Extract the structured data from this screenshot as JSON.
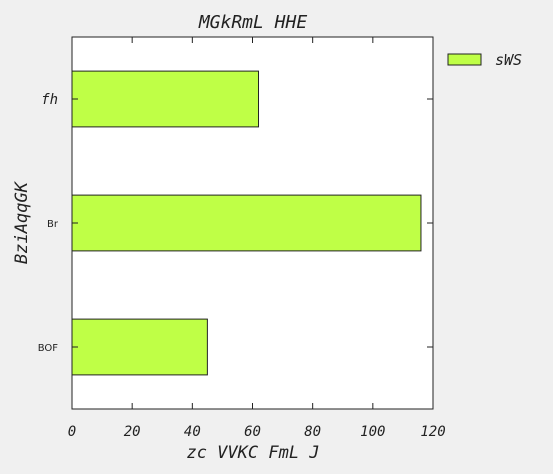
{
  "chart_data": {
    "type": "bar",
    "orientation": "horizontal",
    "title": "MGkRmL HHE",
    "xlabel": "zc VVKC FmL J",
    "ylabel": "BziAqqGK",
    "categories": [
      "BOF",
      "Br",
      "fh"
    ],
    "series": [
      {
        "name": "sWS",
        "values": [
          45,
          116,
          62
        ],
        "color": "#bfff46"
      }
    ],
    "xlim": [
      0,
      120
    ],
    "xticks": [
      0,
      20,
      40,
      60,
      80,
      100,
      120
    ],
    "grid": false,
    "legend": "top-right, outside plot"
  }
}
